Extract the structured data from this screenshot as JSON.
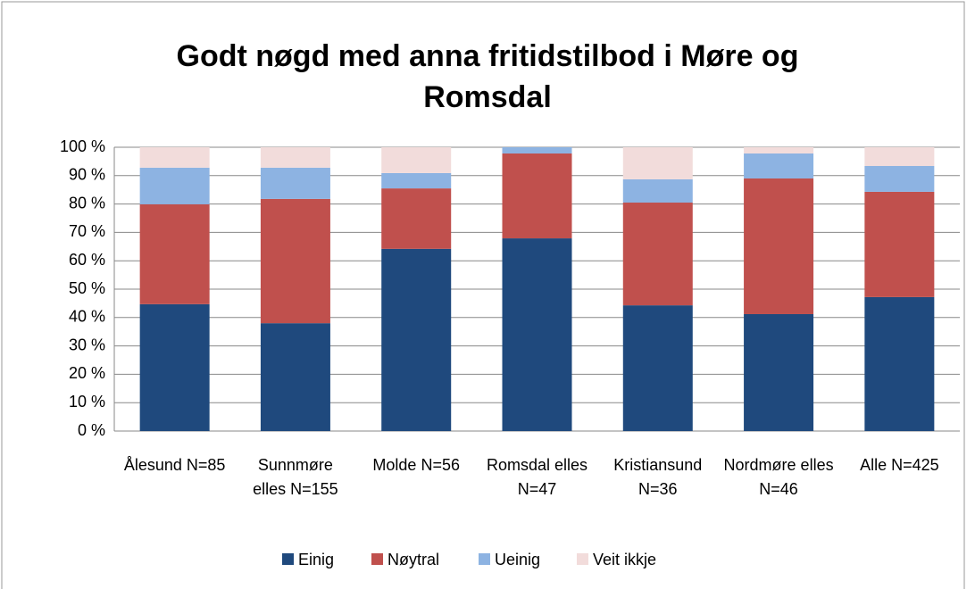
{
  "chart_data": {
    "type": "stacked_bar",
    "title": "Godt nøgd med anna fritidstilbod i Møre og Romsdal",
    "categories": [
      "Ålesund N=85",
      "Sunnmøre elles N=155",
      "Molde N=56",
      "Romsdal elles N=47",
      "Kristiansund N=36",
      "Nordmøre elles N=46",
      "Alle N=425"
    ],
    "series": [
      {
        "name": "Einig",
        "color": "#1f497d",
        "values": [
          44.7,
          38.0,
          64.2,
          67.9,
          44.3,
          41.2,
          47.2
        ]
      },
      {
        "name": "Nøytral",
        "color": "#c0504d",
        "values": [
          35.2,
          43.8,
          21.3,
          29.9,
          36.2,
          47.8,
          37.1
        ]
      },
      {
        "name": "Ueinig",
        "color": "#8db3e2",
        "values": [
          12.9,
          11.0,
          5.4,
          2.2,
          8.2,
          8.8,
          9.1
        ]
      },
      {
        "name": "Veit ikkje",
        "color": "#f2dcdb",
        "values": [
          7.2,
          7.2,
          9.1,
          0,
          11.3,
          2.2,
          6.6
        ]
      }
    ],
    "ylim": [
      0,
      100
    ],
    "yticks": [
      {
        "value": 0,
        "label": "0 %"
      },
      {
        "value": 10,
        "label": "10 %"
      },
      {
        "value": 20,
        "label": "20 %"
      },
      {
        "value": 30,
        "label": "30 %"
      },
      {
        "value": 40,
        "label": "40 %"
      },
      {
        "value": 50,
        "label": "50 %"
      },
      {
        "value": 60,
        "label": "60 %"
      },
      {
        "value": 70,
        "label": "70 %"
      },
      {
        "value": 80,
        "label": "80 %"
      },
      {
        "value": 90,
        "label": "90 %"
      },
      {
        "value": 100,
        "label": "100 %"
      }
    ],
    "grid": true,
    "legend": "bottom"
  }
}
